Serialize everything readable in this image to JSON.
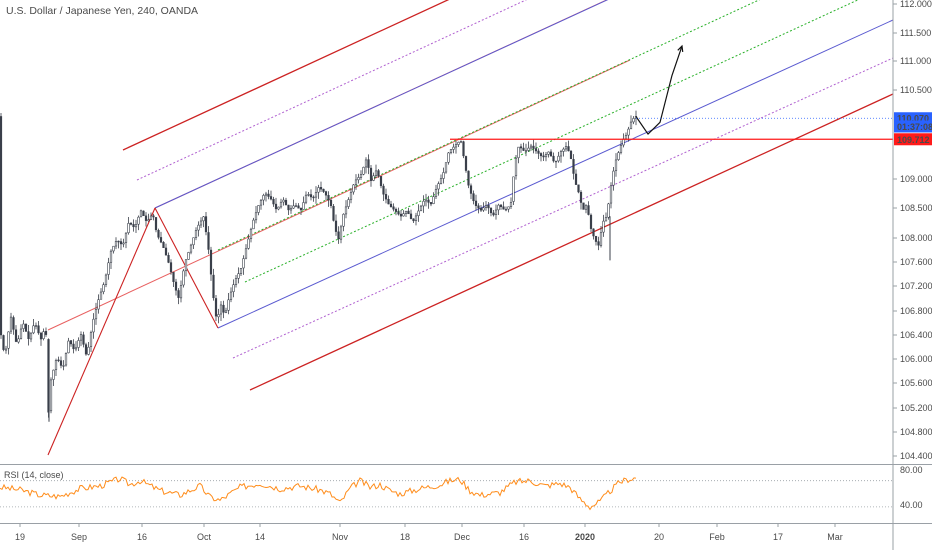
{
  "chart_data": {
    "type": "candlestick",
    "title": "U.S. Dollar / Japanese Yen, 240, OANDA",
    "x_tick_labels": [
      "19",
      "Sep",
      "16",
      "Oct",
      "14",
      "Nov",
      "18",
      "Dec",
      "16",
      "2020",
      "20",
      "Feb",
      "17",
      "Mar"
    ],
    "y_tick_labels": [
      "112.000",
      "111.500",
      "111.000",
      "110.500",
      "109.000",
      "108.500",
      "108.000",
      "107.600",
      "107.200",
      "106.800",
      "106.400",
      "106.000",
      "105.600",
      "105.200",
      "104.800",
      "104.400"
    ],
    "ylim": [
      104.3,
      112.05
    ],
    "price_path": [
      [
        0,
        106.6
      ],
      [
        6,
        106.0
      ],
      [
        12,
        106.7
      ],
      [
        18,
        106.2
      ],
      [
        24,
        106.6
      ],
      [
        30,
        106.3
      ],
      [
        36,
        106.6
      ],
      [
        42,
        106.3
      ],
      [
        47,
        106.55
      ],
      [
        49,
        104.9
      ],
      [
        52,
        105.6
      ],
      [
        58,
        106.0
      ],
      [
        64,
        105.8
      ],
      [
        70,
        106.3
      ],
      [
        76,
        106.1
      ],
      [
        82,
        106.4
      ],
      [
        88,
        106.0
      ],
      [
        94,
        106.6
      ],
      [
        100,
        107.0
      ],
      [
        106,
        107.3
      ],
      [
        112,
        107.8
      ],
      [
        118,
        108.0
      ],
      [
        124,
        107.9
      ],
      [
        130,
        108.3
      ],
      [
        136,
        108.2
      ],
      [
        142,
        108.5
      ],
      [
        148,
        108.3
      ],
      [
        154,
        108.45
      ],
      [
        158,
        108.1
      ],
      [
        164,
        107.9
      ],
      [
        170,
        107.6
      ],
      [
        176,
        107.2
      ],
      [
        180,
        107.0
      ],
      [
        186,
        107.6
      ],
      [
        192,
        107.9
      ],
      [
        198,
        108.2
      ],
      [
        205,
        108.4
      ],
      [
        210,
        107.8
      ],
      [
        214,
        107.1
      ],
      [
        218,
        106.6
      ],
      [
        222,
        106.9
      ],
      [
        226,
        106.7
      ],
      [
        230,
        107.0
      ],
      [
        236,
        107.3
      ],
      [
        242,
        107.5
      ],
      [
        248,
        107.9
      ],
      [
        254,
        108.3
      ],
      [
        260,
        108.6
      ],
      [
        266,
        108.8
      ],
      [
        272,
        108.7
      ],
      [
        278,
        108.5
      ],
      [
        284,
        108.7
      ],
      [
        290,
        108.5
      ],
      [
        296,
        108.6
      ],
      [
        302,
        108.5
      ],
      [
        308,
        108.8
      ],
      [
        314,
        108.7
      ],
      [
        320,
        108.9
      ],
      [
        326,
        108.8
      ],
      [
        332,
        108.6
      ],
      [
        336,
        108.2
      ],
      [
        340,
        108.0
      ],
      [
        344,
        108.4
      ],
      [
        350,
        108.7
      ],
      [
        356,
        109.0
      ],
      [
        362,
        109.1
      ],
      [
        368,
        109.4
      ],
      [
        372,
        109.0
      ],
      [
        378,
        109.2
      ],
      [
        384,
        108.8
      ],
      [
        390,
        108.6
      ],
      [
        396,
        108.5
      ],
      [
        402,
        108.4
      ],
      [
        408,
        108.5
      ],
      [
        414,
        108.3
      ],
      [
        420,
        108.5
      ],
      [
        426,
        108.7
      ],
      [
        432,
        108.6
      ],
      [
        438,
        108.9
      ],
      [
        444,
        109.1
      ],
      [
        450,
        109.5
      ],
      [
        456,
        109.6
      ],
      [
        462,
        109.7
      ],
      [
        466,
        109.3
      ],
      [
        470,
        108.9
      ],
      [
        476,
        108.6
      ],
      [
        482,
        108.5
      ],
      [
        488,
        108.6
      ],
      [
        494,
        108.4
      ],
      [
        500,
        108.6
      ],
      [
        506,
        108.5
      ],
      [
        512,
        108.6
      ],
      [
        516,
        109.3
      ],
      [
        520,
        109.6
      ],
      [
        526,
        109.5
      ],
      [
        532,
        109.6
      ],
      [
        538,
        109.5
      ],
      [
        544,
        109.4
      ],
      [
        550,
        109.5
      ],
      [
        556,
        109.3
      ],
      [
        562,
        109.5
      ],
      [
        568,
        109.6
      ],
      [
        572,
        109.4
      ],
      [
        576,
        109.0
      ],
      [
        580,
        108.8
      ],
      [
        584,
        108.5
      ],
      [
        588,
        108.6
      ],
      [
        592,
        108.2
      ],
      [
        596,
        108.0
      ],
      [
        600,
        107.9
      ],
      [
        604,
        108.3
      ],
      [
        608,
        108.4
      ],
      [
        612,
        108.9
      ],
      [
        616,
        109.3
      ],
      [
        620,
        109.5
      ],
      [
        624,
        109.7
      ],
      [
        628,
        109.8
      ],
      [
        632,
        110.0
      ],
      [
        636,
        110.1
      ]
    ],
    "projection_path": [
      [
        636,
        110.1
      ],
      [
        648,
        109.8
      ],
      [
        660,
        110.0
      ],
      [
        672,
        110.8
      ],
      [
        682,
        111.3
      ]
    ],
    "horizontal_level": 109.712,
    "price_labels": [
      {
        "text": "110.070",
        "value": 110.07,
        "color": "#2962ff"
      },
      {
        "text": "01:37:08",
        "value": 109.93,
        "color": "#2962ff"
      },
      {
        "text": "109.712",
        "value": 109.712,
        "color": "#ff1a1a"
      }
    ],
    "rsi": {
      "label": "RSI (14, close)",
      "y_tick_labels": [
        "80.00",
        "40.00"
      ],
      "values": [
        [
          0,
          60
        ],
        [
          20,
          56
        ],
        [
          40,
          48
        ],
        [
          60,
          46
        ],
        [
          80,
          58
        ],
        [
          100,
          62
        ],
        [
          120,
          73
        ],
        [
          130,
          64
        ],
        [
          140,
          70
        ],
        [
          160,
          55
        ],
        [
          180,
          48
        ],
        [
          200,
          62
        ],
        [
          210,
          45
        ],
        [
          220,
          40
        ],
        [
          240,
          60
        ],
        [
          260,
          66
        ],
        [
          280,
          58
        ],
        [
          300,
          62
        ],
        [
          320,
          56
        ],
        [
          330,
          50
        ],
        [
          340,
          36
        ],
        [
          350,
          58
        ],
        [
          360,
          70
        ],
        [
          370,
          60
        ],
        [
          380,
          64
        ],
        [
          390,
          55
        ],
        [
          400,
          50
        ],
        [
          420,
          58
        ],
        [
          440,
          64
        ],
        [
          450,
          70
        ],
        [
          460,
          72
        ],
        [
          470,
          55
        ],
        [
          480,
          48
        ],
        [
          500,
          52
        ],
        [
          515,
          68
        ],
        [
          530,
          70
        ],
        [
          545,
          62
        ],
        [
          560,
          66
        ],
        [
          570,
          60
        ],
        [
          580,
          42
        ],
        [
          590,
          30
        ],
        [
          600,
          38
        ],
        [
          610,
          54
        ],
        [
          620,
          68
        ],
        [
          630,
          73
        ],
        [
          636,
          74
        ]
      ]
    },
    "colors": {
      "up_down": "#3a3f4a",
      "rsi": "#ff8c1a",
      "level": "#ff1a1a",
      "pitchfork_median": "#6b6bc6",
      "projection": "#111111"
    }
  }
}
